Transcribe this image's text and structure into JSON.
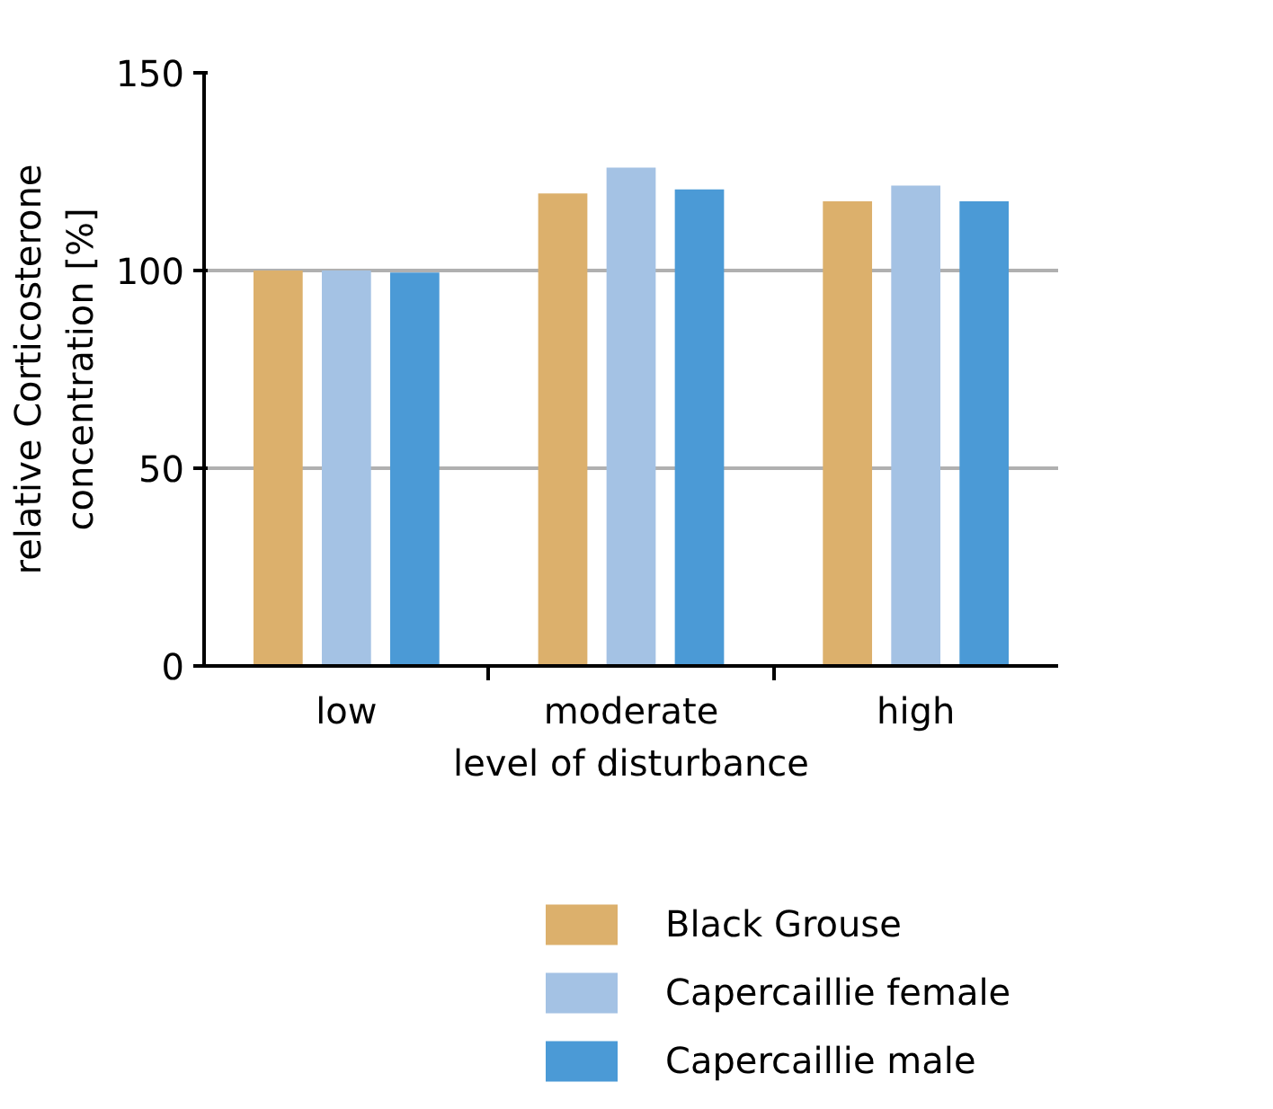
{
  "chart_data": {
    "type": "bar",
    "xlabel": "level of disturbance",
    "ylabel": "relative Corticosterone\nconcentration [%]",
    "categories": [
      "low",
      "moderate",
      "high"
    ],
    "series": [
      {
        "name": "Black Grouse",
        "color": "#dcb06c",
        "values": [
          100,
          119.5,
          117.5
        ]
      },
      {
        "name": "Capercaillie female",
        "color": "#a4c2e4",
        "values": [
          100,
          126,
          121.5
        ]
      },
      {
        "name": "Capercaillie male",
        "color": "#4b9ad6",
        "values": [
          99.5,
          120.5,
          117.5
        ]
      }
    ],
    "ylim": [
      0,
      150
    ],
    "yticks": [
      0,
      50,
      100,
      150
    ],
    "grid": "y",
    "legend": "bottom"
  }
}
